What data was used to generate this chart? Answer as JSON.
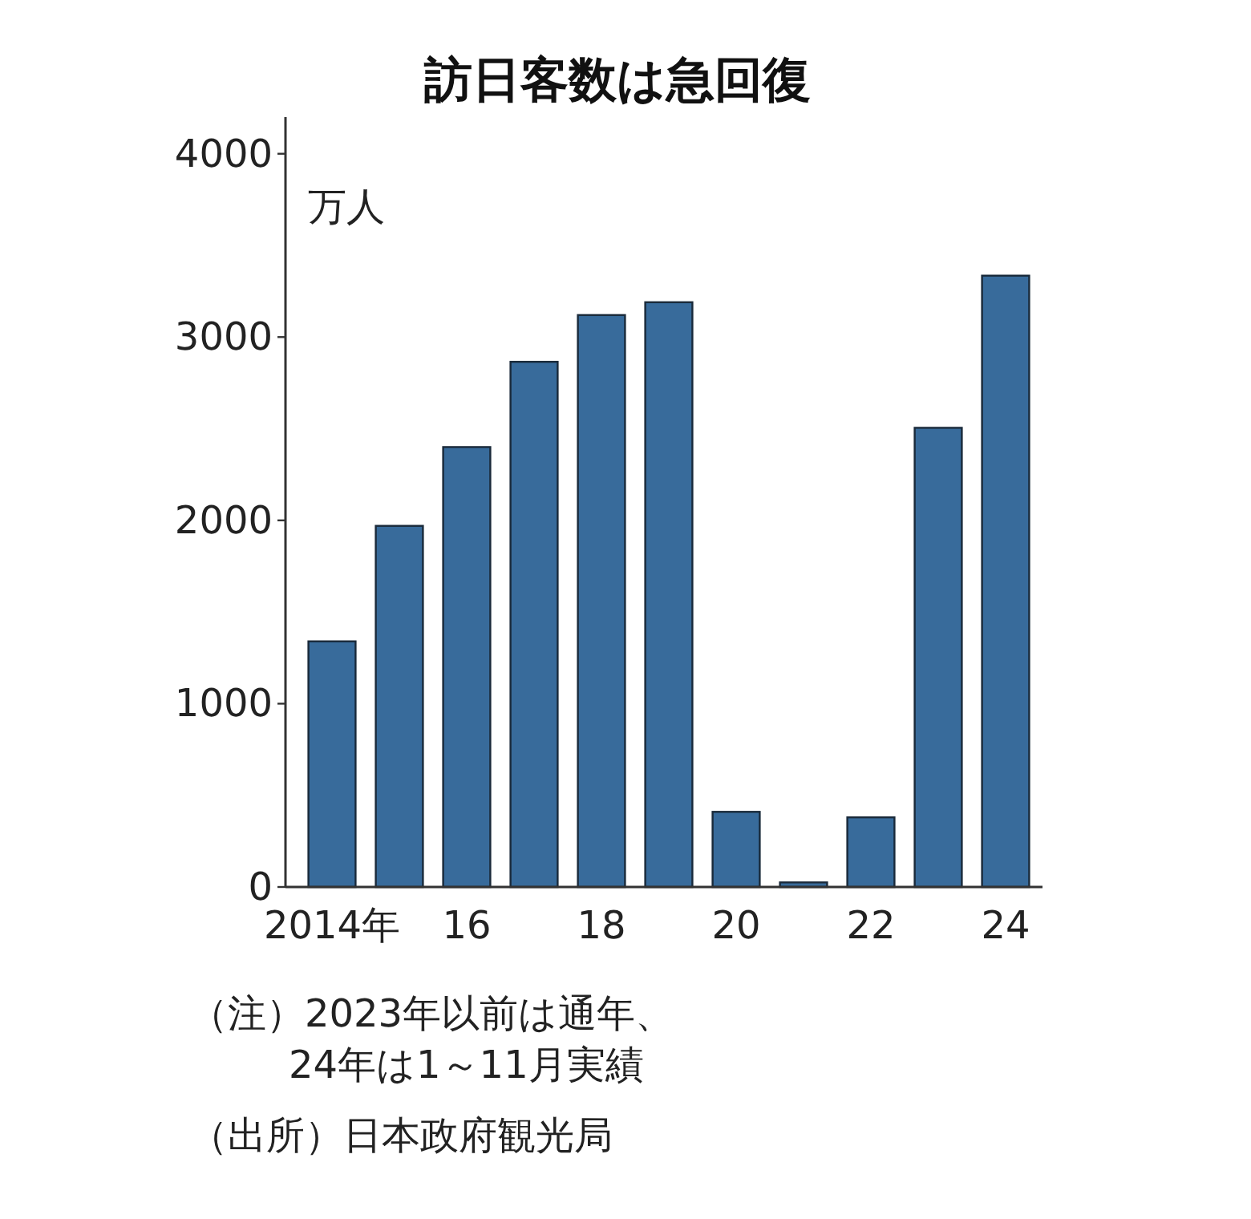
{
  "chart_data": {
    "type": "bar",
    "title": "訪日客数は急回復",
    "ylabel": "万人",
    "categories": [
      "2014年",
      null,
      "16",
      null,
      "18",
      null,
      "20",
      null,
      "22",
      null,
      "24"
    ],
    "values": [
      1340,
      1970,
      2400,
      2865,
      3120,
      3190,
      410,
      25,
      380,
      2505,
      3335
    ],
    "color": "#386b9b",
    "ylim": [
      0,
      4200
    ],
    "yticks": [
      0,
      1000,
      2000,
      3000,
      4000
    ],
    "grid": false,
    "annotations": [
      "（注）2023年以前は通年、\n24年は1～11月実績",
      "（出所）日本政府観光局"
    ]
  }
}
